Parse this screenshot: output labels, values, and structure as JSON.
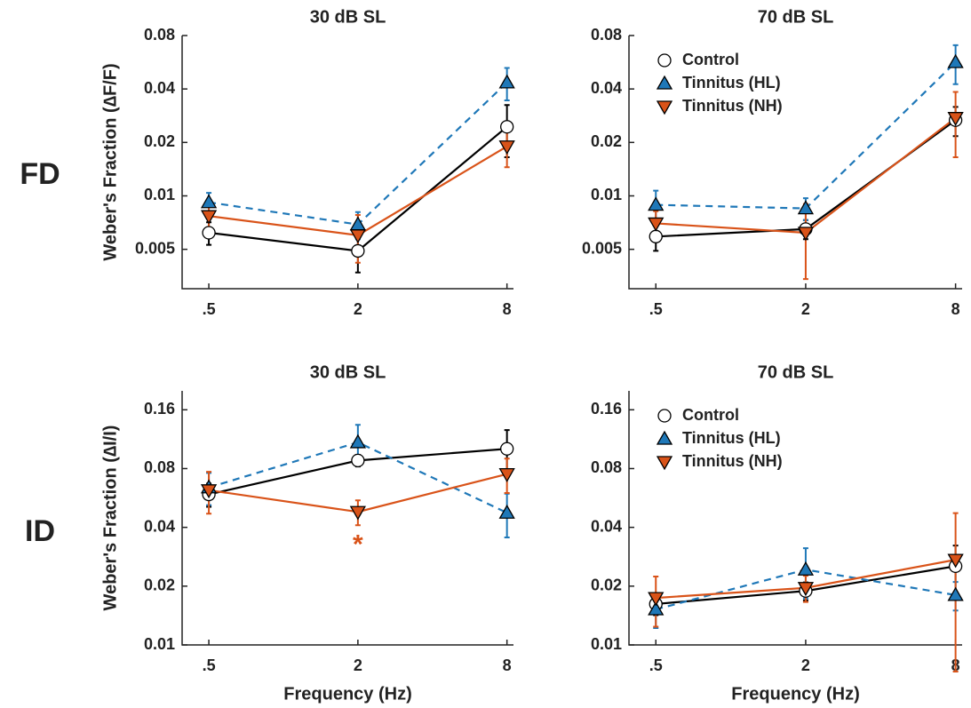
{
  "row_labels": [
    "FD",
    "ID"
  ],
  "chart_data": [
    {
      "type": "line",
      "title": "30 dB SL",
      "ylabel": "Weber's Fraction (∆F/F)",
      "log_x": true,
      "log_y": true,
      "x": [
        0.5,
        2,
        8
      ],
      "xlim": [
        0.39,
        8.5
      ],
      "xticks": [
        {
          "value": 0.5,
          "label": ".5"
        },
        2,
        8
      ],
      "ylim": [
        0.003,
        0.08
      ],
      "yticks": [
        0.005,
        0.01,
        0.02,
        0.04,
        0.08
      ],
      "series": [
        {
          "name": "Control",
          "color": "#000000",
          "marker": "circle",
          "dash": false,
          "values": [
            0.0062,
            0.0049,
            0.0245
          ],
          "errors": [
            0.0009,
            0.0012,
            0.008
          ]
        },
        {
          "name": "Tinnitus (HL)",
          "color": "#1f78b8",
          "marker": "triangle-up",
          "dash": true,
          "values": [
            0.0092,
            0.0069,
            0.0435
          ],
          "errors": [
            0.0012,
            0.0012,
            0.009
          ]
        },
        {
          "name": "Tinnitus (NH)",
          "color": "#d95319",
          "marker": "triangle-down",
          "dash": false,
          "values": [
            0.0077,
            0.006,
            0.019
          ],
          "errors": [
            0.0012,
            0.0018,
            0.0045
          ]
        }
      ]
    },
    {
      "type": "line",
      "title": "70 dB SL",
      "log_x": true,
      "log_y": true,
      "legend": "upper left",
      "x": [
        0.5,
        2,
        8
      ],
      "xlim": [
        0.39,
        8.5
      ],
      "xticks": [
        {
          "value": 0.5,
          "label": ".5"
        },
        2,
        8
      ],
      "ylim": [
        0.003,
        0.08
      ],
      "yticks": [
        0.005,
        0.01,
        0.02,
        0.04,
        0.08
      ],
      "series": [
        {
          "name": "Control",
          "color": "#000000",
          "marker": "circle",
          "dash": false,
          "values": [
            0.0059,
            0.0065,
            0.0267
          ],
          "errors": [
            0.001,
            0.0008,
            0.005
          ]
        },
        {
          "name": "Tinnitus (HL)",
          "color": "#1f78b8",
          "marker": "triangle-up",
          "dash": true,
          "values": [
            0.0089,
            0.0085,
            0.0566
          ],
          "errors": [
            0.0018,
            0.0012,
            0.014
          ]
        },
        {
          "name": "Tinnitus (NH)",
          "color": "#d95319",
          "marker": "triangle-down",
          "dash": false,
          "values": [
            0.007,
            0.0062,
            0.0275
          ],
          "errors": [
            0.0012,
            0.0028,
            0.011
          ]
        }
      ]
    },
    {
      "type": "line",
      "title": "30 dB SL",
      "ylabel": "Weber's Fraction (∆I/I)",
      "xlabel": "Frequency (Hz)",
      "log_x": true,
      "log_y": true,
      "x": [
        0.5,
        2,
        8
      ],
      "xlim": [
        0.39,
        8.5
      ],
      "xticks": [
        {
          "value": 0.5,
          "label": ".5"
        },
        2,
        8
      ],
      "ylim": [
        0.01,
        0.2
      ],
      "yticks": [
        0.01,
        0.02,
        0.04,
        0.08,
        0.16
      ],
      "annotations": [
        {
          "text": "*",
          "x": 2,
          "y": 0.035,
          "color": "#d95319"
        }
      ],
      "series": [
        {
          "name": "Control",
          "color": "#000000",
          "marker": "circle",
          "dash": false,
          "values": [
            0.059,
            0.088,
            0.101
          ],
          "errors": [
            0.008,
            0.006,
            0.025
          ]
        },
        {
          "name": "Tinnitus (HL)",
          "color": "#1f78b8",
          "marker": "triangle-up",
          "dash": true,
          "values": [
            0.064,
            0.109,
            0.0475
          ],
          "errors": [
            0.012,
            0.025,
            0.012
          ]
        },
        {
          "name": "Tinnitus (NH)",
          "color": "#d95319",
          "marker": "triangle-down",
          "dash": false,
          "values": [
            0.062,
            0.048,
            0.075
          ],
          "errors": [
            0.015,
            0.007,
            0.015
          ]
        }
      ]
    },
    {
      "type": "line",
      "title": "70 dB SL",
      "xlabel": "Frequency (Hz)",
      "log_x": true,
      "log_y": true,
      "legend": "upper left",
      "x": [
        0.5,
        2,
        8
      ],
      "xlim": [
        0.39,
        8.5
      ],
      "xticks": [
        {
          "value": 0.5,
          "label": ".5"
        },
        2,
        8
      ],
      "ylim": [
        0.01,
        0.2
      ],
      "yticks": [
        0.01,
        0.02,
        0.04,
        0.08,
        0.16
      ],
      "series": [
        {
          "name": "Control",
          "color": "#000000",
          "marker": "circle",
          "dash": false,
          "values": [
            0.0162,
            0.0189,
            0.0253
          ],
          "errors": [
            0.002,
            0.002,
            0.007
          ]
        },
        {
          "name": "Tinnitus (HL)",
          "color": "#1f78b8",
          "marker": "triangle-up",
          "dash": true,
          "values": [
            0.0152,
            0.0243,
            0.018
          ],
          "errors": [
            0.003,
            0.007,
            0.003
          ]
        },
        {
          "name": "Tinnitus (NH)",
          "color": "#d95319",
          "marker": "triangle-down",
          "dash": false,
          "values": [
            0.0174,
            0.0196,
            0.0273
          ],
          "errors": [
            0.005,
            0.003,
            0.02
          ]
        }
      ]
    }
  ]
}
